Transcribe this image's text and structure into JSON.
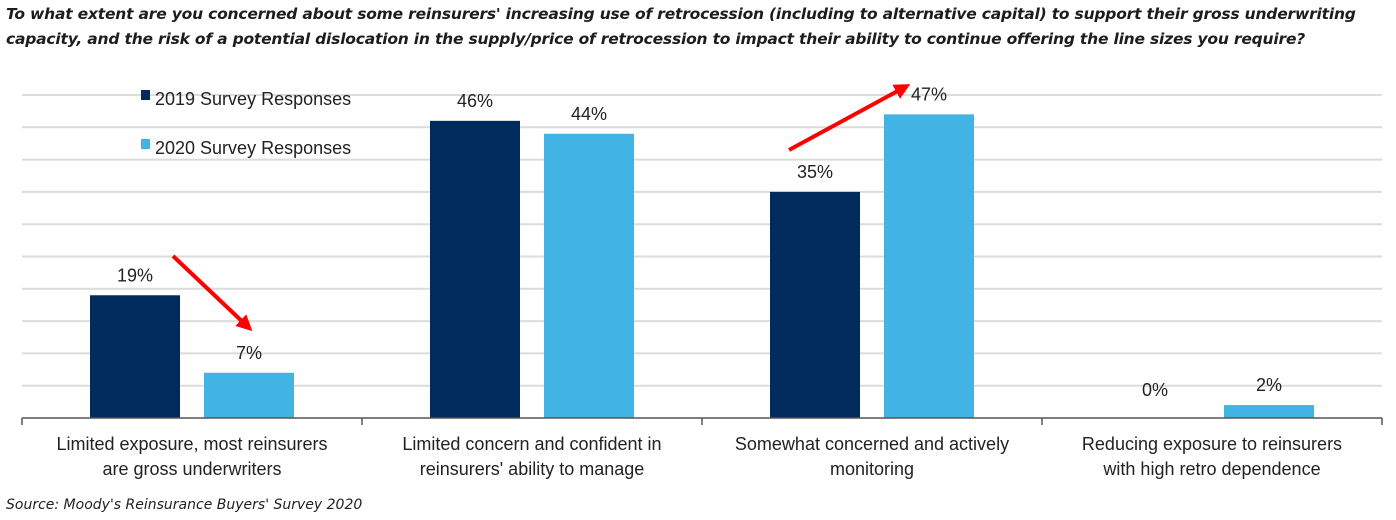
{
  "title": "To what extent are you concerned about some reinsurers' increasing use of retrocession (including to alternative capital) to support their gross underwriting capacity, and the risk of a potential dislocation in the supply/price of retrocession to impact their ability to continue offering the line sizes you require?",
  "source": "Source: Moody's Reinsurance Buyers' Survey 2020",
  "chart_data": {
    "type": "bar",
    "title": "To what extent are you concerned about some reinsurers' increasing use of retrocession (including to alternative capital) to support their gross underwriting capacity, and the risk of a potential dislocation in the supply/price of retrocession to impact their ability to continue offering the line sizes you require?",
    "categories": [
      [
        "Limited exposure, most reinsurers",
        "are gross underwriters"
      ],
      [
        "Limited concern and confident in",
        "reinsurers' ability to manage"
      ],
      [
        "Somewhat concerned and actively",
        "monitoring"
      ],
      [
        "Reducing exposure to reinsurers",
        "with high retro dependence"
      ]
    ],
    "series": [
      {
        "name": "2019 Survey Responses",
        "color": "#002b5c",
        "values": [
          19,
          46,
          35,
          0
        ],
        "labels": [
          "19%",
          "46%",
          "35%",
          "0%"
        ]
      },
      {
        "name": "2020 Survey Responses",
        "color": "#41b4e5",
        "values": [
          7,
          44,
          47,
          2
        ],
        "labels": [
          "7%",
          "44%",
          "47%",
          "2%"
        ]
      }
    ],
    "ylim": [
      0,
      50
    ],
    "y_grid_step": 5,
    "y_axis_labels_shown": false,
    "grid": true,
    "legend": "top-left",
    "annotations": [
      {
        "type": "arrow",
        "color": "#ff0000",
        "from_category": 0,
        "direction": "down",
        "meaning": "decrease 2019 to 2020"
      },
      {
        "type": "arrow",
        "color": "#ff0000",
        "from_category": 2,
        "direction": "up",
        "meaning": "increase 2019 to 2020"
      }
    ]
  }
}
